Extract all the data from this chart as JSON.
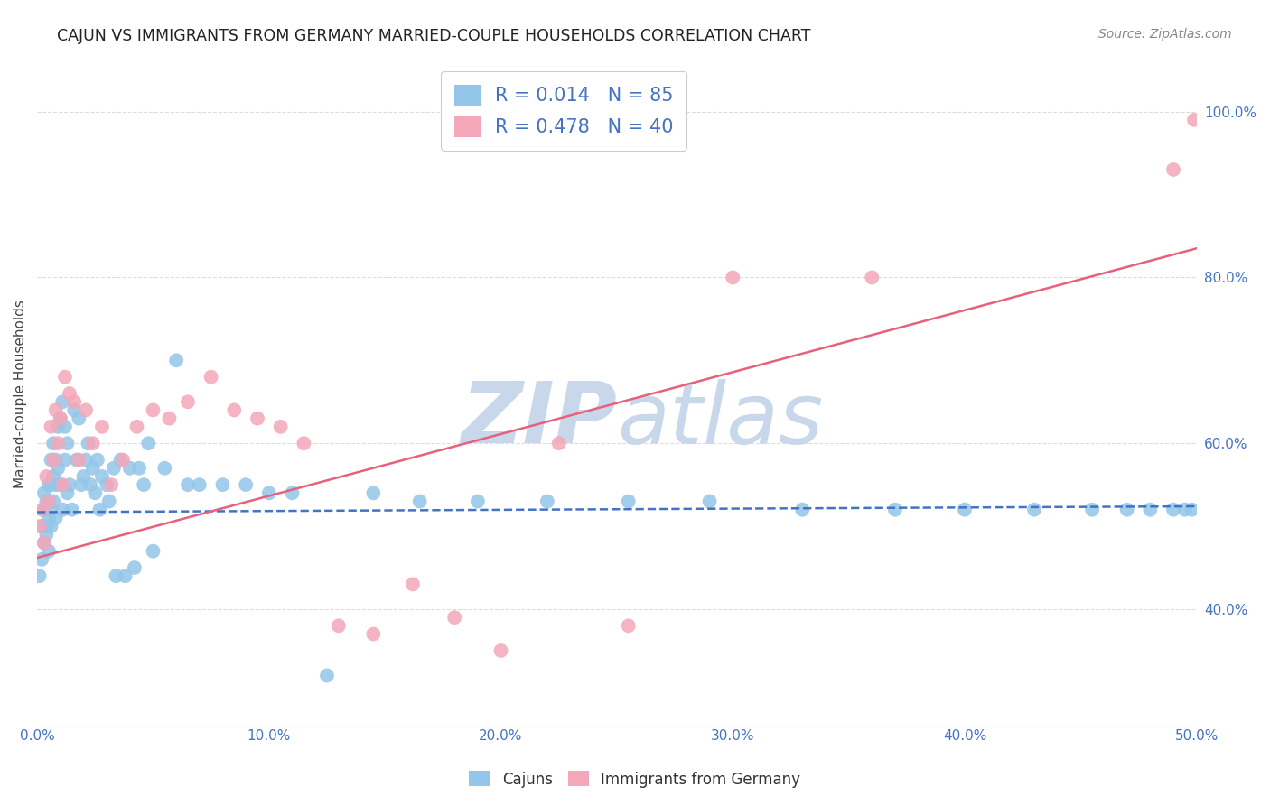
{
  "title": "CAJUN VS IMMIGRANTS FROM GERMANY MARRIED-COUPLE HOUSEHOLDS CORRELATION CHART",
  "source_text": "Source: ZipAtlas.com",
  "ylabel": "Married-couple Households",
  "xlim": [
    0.0,
    0.5
  ],
  "ylim": [
    0.26,
    1.06
  ],
  "xticks": [
    0.0,
    0.1,
    0.2,
    0.3,
    0.4,
    0.5
  ],
  "yticks_right": [
    0.4,
    0.6,
    0.8,
    1.0
  ],
  "xticklabels": [
    "0.0%",
    "10.0%",
    "20.0%",
    "30.0%",
    "40.0%",
    "50.0%"
  ],
  "yticklabels_right": [
    "40.0%",
    "60.0%",
    "80.0%",
    "100.0%"
  ],
  "cajuns_R": 0.014,
  "cajuns_N": 85,
  "germany_R": 0.478,
  "germany_N": 40,
  "cajun_color": "#93C6E8",
  "germany_color": "#F4A7B9",
  "cajun_line_color": "#4472C4",
  "germany_line_color": "#E8607A",
  "watermark_color": "#C8D8EA",
  "background_color": "#FFFFFF",
  "grid_color": "#DDDDDD",
  "legend_label_cajun": "Cajuns",
  "legend_label_germany": "Immigrants from Germany",
  "cajuns_x": [
    0.001,
    0.002,
    0.002,
    0.003,
    0.003,
    0.003,
    0.004,
    0.004,
    0.004,
    0.005,
    0.005,
    0.005,
    0.005,
    0.006,
    0.006,
    0.006,
    0.006,
    0.007,
    0.007,
    0.007,
    0.008,
    0.008,
    0.008,
    0.009,
    0.009,
    0.01,
    0.01,
    0.011,
    0.011,
    0.012,
    0.012,
    0.013,
    0.013,
    0.014,
    0.015,
    0.016,
    0.017,
    0.018,
    0.019,
    0.02,
    0.021,
    0.022,
    0.023,
    0.024,
    0.025,
    0.026,
    0.027,
    0.028,
    0.03,
    0.031,
    0.033,
    0.034,
    0.036,
    0.038,
    0.04,
    0.042,
    0.044,
    0.046,
    0.048,
    0.05,
    0.055,
    0.06,
    0.065,
    0.07,
    0.08,
    0.09,
    0.1,
    0.11,
    0.125,
    0.145,
    0.165,
    0.19,
    0.22,
    0.255,
    0.29,
    0.33,
    0.37,
    0.4,
    0.43,
    0.455,
    0.47,
    0.48,
    0.49,
    0.495,
    0.498
  ],
  "cajuns_y": [
    0.44,
    0.46,
    0.5,
    0.48,
    0.52,
    0.54,
    0.5,
    0.53,
    0.49,
    0.51,
    0.53,
    0.55,
    0.47,
    0.55,
    0.52,
    0.5,
    0.58,
    0.56,
    0.53,
    0.6,
    0.58,
    0.51,
    0.55,
    0.62,
    0.57,
    0.63,
    0.55,
    0.65,
    0.52,
    0.62,
    0.58,
    0.6,
    0.54,
    0.55,
    0.52,
    0.64,
    0.58,
    0.63,
    0.55,
    0.56,
    0.58,
    0.6,
    0.55,
    0.57,
    0.54,
    0.58,
    0.52,
    0.56,
    0.55,
    0.53,
    0.57,
    0.44,
    0.58,
    0.44,
    0.57,
    0.45,
    0.57,
    0.55,
    0.6,
    0.47,
    0.57,
    0.7,
    0.55,
    0.55,
    0.55,
    0.55,
    0.54,
    0.54,
    0.32,
    0.54,
    0.53,
    0.53,
    0.53,
    0.53,
    0.53,
    0.52,
    0.52,
    0.52,
    0.52,
    0.52,
    0.52,
    0.52,
    0.52,
    0.52,
    0.52
  ],
  "germany_x": [
    0.001,
    0.002,
    0.003,
    0.004,
    0.005,
    0.006,
    0.007,
    0.008,
    0.009,
    0.01,
    0.011,
    0.012,
    0.014,
    0.016,
    0.018,
    0.021,
    0.024,
    0.028,
    0.032,
    0.037,
    0.043,
    0.05,
    0.057,
    0.065,
    0.075,
    0.085,
    0.095,
    0.105,
    0.115,
    0.13,
    0.145,
    0.162,
    0.18,
    0.2,
    0.225,
    0.255,
    0.3,
    0.36,
    0.49,
    0.499
  ],
  "germany_y": [
    0.5,
    0.52,
    0.48,
    0.56,
    0.53,
    0.62,
    0.58,
    0.64,
    0.6,
    0.63,
    0.55,
    0.68,
    0.66,
    0.65,
    0.58,
    0.64,
    0.6,
    0.62,
    0.55,
    0.58,
    0.62,
    0.64,
    0.63,
    0.65,
    0.68,
    0.64,
    0.63,
    0.62,
    0.6,
    0.38,
    0.37,
    0.43,
    0.39,
    0.35,
    0.6,
    0.38,
    0.8,
    0.8,
    0.93,
    0.99
  ],
  "cajun_line_x": [
    0.0,
    0.5
  ],
  "cajun_line_y": [
    0.517,
    0.524
  ],
  "germany_line_x": [
    0.0,
    0.5
  ],
  "germany_line_y": [
    0.462,
    0.835
  ]
}
